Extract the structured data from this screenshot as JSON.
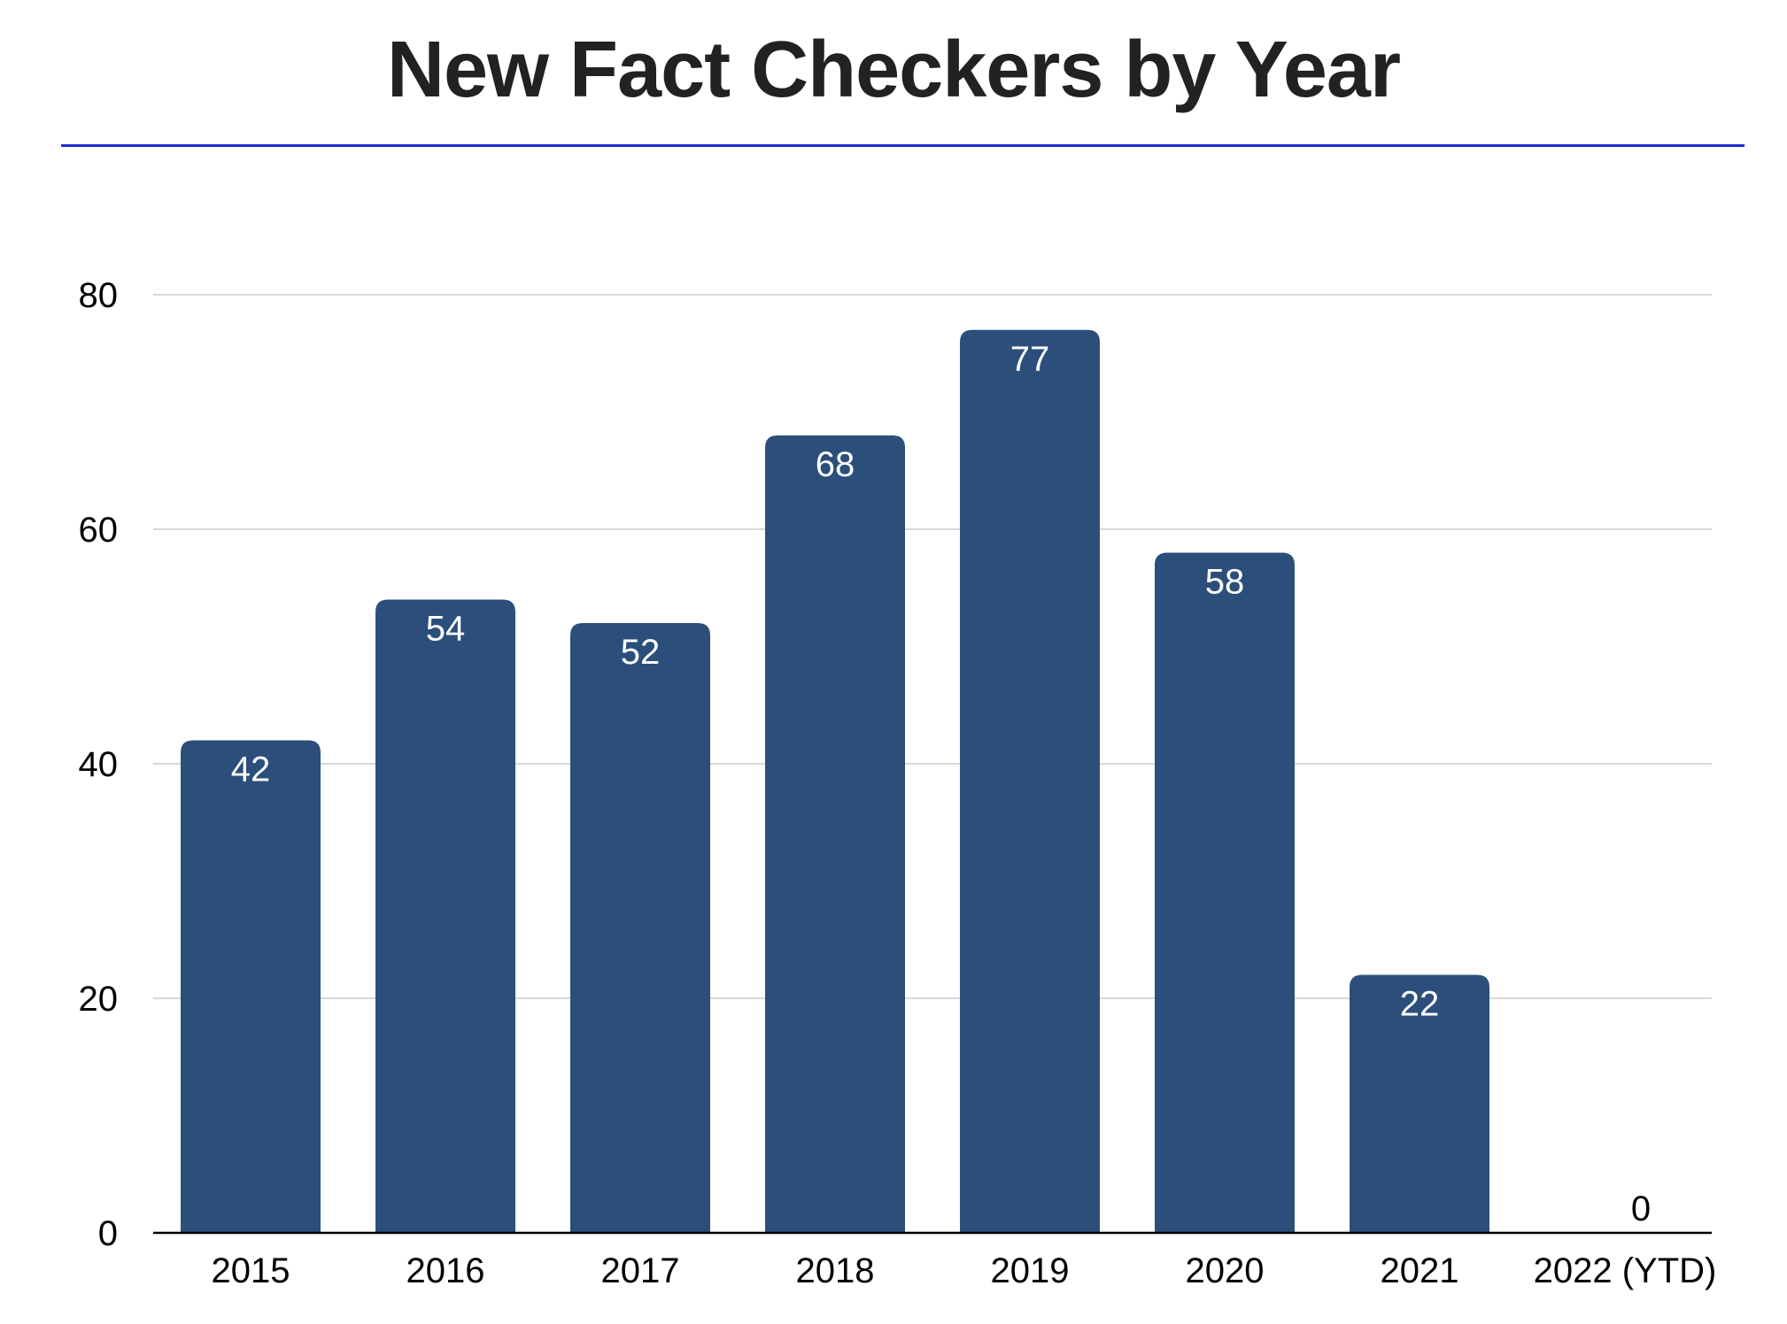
{
  "colors": {
    "bar": "#2b4f7a",
    "title_rule": "#1a2fd6",
    "grid": "#cccccc",
    "axis": "#000000",
    "title": "#222222"
  },
  "chart_data": {
    "type": "bar",
    "title": "New Fact Checkers by Year",
    "categories": [
      "2015",
      "2016",
      "2017",
      "2018",
      "2019",
      "2020",
      "2021",
      "2022 (YTD)"
    ],
    "values": [
      42,
      54,
      52,
      68,
      77,
      58,
      22,
      0
    ],
    "value_labels": [
      "42",
      "54",
      "52",
      "68",
      "77",
      "58",
      "22",
      "0"
    ],
    "yticks": [
      0,
      20,
      40,
      60,
      80
    ],
    "ytick_labels": [
      "0",
      "20",
      "40",
      "60",
      "80"
    ],
    "ylim": [
      0,
      80
    ],
    "grid": true,
    "legend": "none"
  }
}
